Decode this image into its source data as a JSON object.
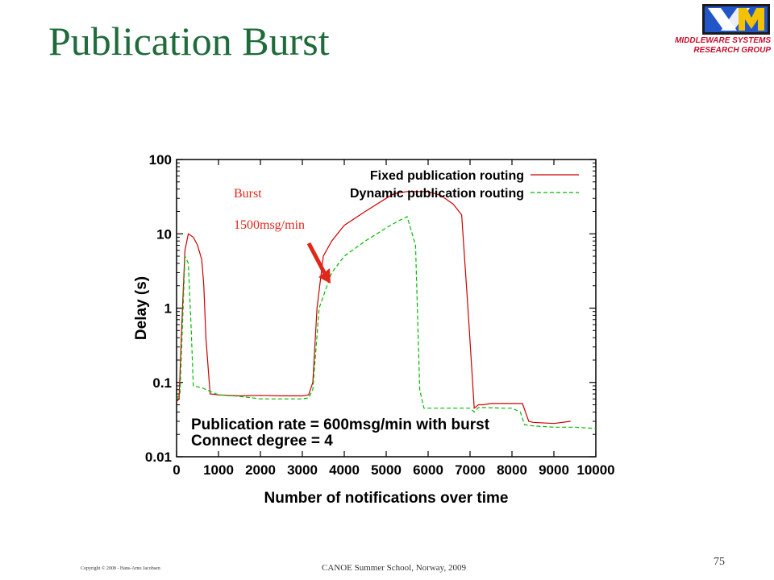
{
  "slide": {
    "title": "Publication Burst",
    "logo_line1": "MIDDLEWARE SYSTEMS",
    "logo_line2": "RESEARCH GROUP",
    "burst_label": "Burst",
    "burst_rate": "1500msg/min",
    "copyright": "Copyright © 2008 - Hans-Arno Jacobsen",
    "footer": "CANOE Summer School, Norway, 2009",
    "page_number": "75"
  },
  "colors": {
    "title": "#1f6b3a",
    "fixed": "#cc0000",
    "dynamic": "#00bb00",
    "arrow": "#e1261c",
    "logo_text": "#c8102e"
  },
  "chart_data": {
    "type": "line",
    "xlabel": "Number of notifications over time",
    "ylabel": "Delay (s)",
    "xlim": [
      0,
      10000
    ],
    "ylim": [
      0.01,
      100
    ],
    "y_scale": "log",
    "x_ticks": [
      0,
      1000,
      2000,
      3000,
      4000,
      5000,
      6000,
      7000,
      8000,
      9000,
      10000
    ],
    "x_tick_labels": [
      "0",
      "1000",
      "2000",
      "3000",
      "4000",
      "5000",
      "6000",
      "7000",
      "8000",
      "9000",
      "10000"
    ],
    "y_ticks": [
      0.01,
      0.1,
      1,
      10,
      100
    ],
    "y_tick_labels": [
      "0.01",
      "0.1",
      "1",
      "10",
      "100"
    ],
    "legend_position": "top-right",
    "annotations": [
      "Publication rate = 600msg/min with burst",
      "Connect degree = 4"
    ],
    "series": [
      {
        "name": "Fixed publication routing",
        "style": "solid",
        "x": [
          0,
          60,
          120,
          200,
          280,
          400,
          500,
          600,
          650,
          700,
          800,
          1000,
          1500,
          2000,
          2500,
          3000,
          3150,
          3250,
          3350,
          3500,
          3700,
          4000,
          4500,
          5000,
          5200,
          5500,
          6000,
          6300,
          6600,
          6800,
          6950,
          7100,
          7200,
          7300,
          7500,
          8000,
          8250,
          8400,
          8500,
          9000,
          9400
        ],
        "y": [
          0.055,
          0.06,
          0.5,
          6,
          10,
          9,
          7,
          4.5,
          2,
          0.4,
          0.07,
          0.068,
          0.066,
          0.067,
          0.066,
          0.066,
          0.068,
          0.1,
          1,
          5,
          8,
          13,
          20,
          30,
          35,
          37,
          37,
          33,
          25,
          18,
          1,
          0.045,
          0.05,
          0.05,
          0.052,
          0.052,
          0.052,
          0.03,
          0.029,
          0.028,
          0.03
        ]
      },
      {
        "name": "Dynamic publication routing",
        "style": "dashed",
        "x": [
          0,
          80,
          150,
          200,
          280,
          350,
          400,
          600,
          1000,
          1500,
          2000,
          2500,
          3000,
          3150,
          3250,
          3400,
          3700,
          4000,
          4500,
          5000,
          5300,
          5500,
          5700,
          5800,
          5900,
          6000,
          6500,
          7000,
          7100,
          7200,
          7300,
          7800,
          8000,
          8200,
          8300,
          8500,
          9000,
          9500,
          10000
        ],
        "y": [
          0.06,
          0.07,
          0.8,
          5,
          4,
          0.5,
          0.09,
          0.085,
          0.068,
          0.065,
          0.06,
          0.06,
          0.06,
          0.062,
          0.08,
          1,
          3,
          5,
          8,
          12,
          15,
          17,
          7,
          0.08,
          0.045,
          0.045,
          0.045,
          0.045,
          0.04,
          0.046,
          0.046,
          0.045,
          0.045,
          0.04,
          0.027,
          0.026,
          0.025,
          0.025,
          0.024
        ]
      }
    ]
  }
}
